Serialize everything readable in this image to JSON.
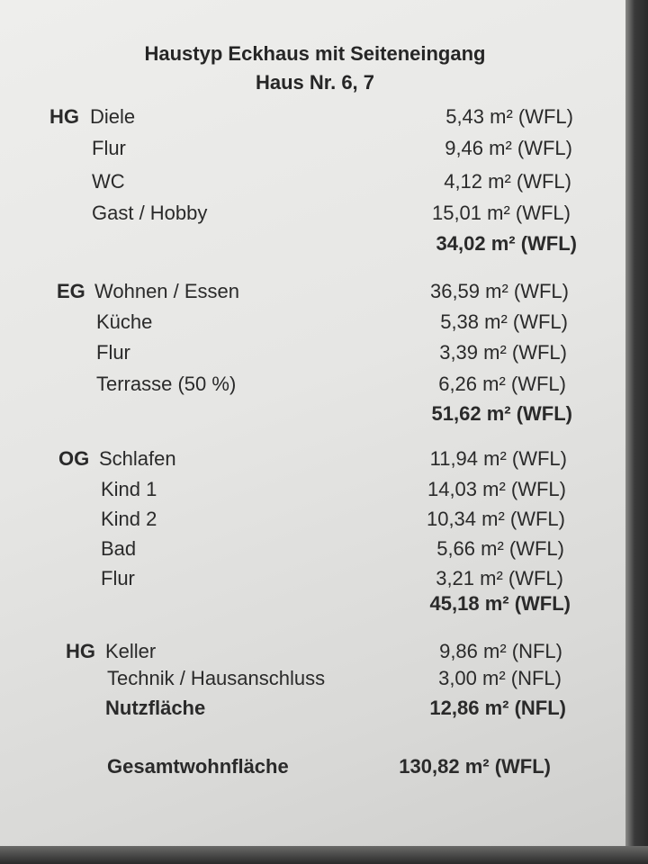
{
  "title": "Haustyp Eckhaus mit Seiteneingang",
  "subtitle": "Haus Nr. 6, 7",
  "sections": [
    {
      "label": "HG",
      "rows": [
        {
          "name": "Diele",
          "value": "5,43 m² (WFL)"
        },
        {
          "name": "Flur",
          "value": "9,46 m² (WFL)"
        },
        {
          "name": "WC",
          "value": "4,12 m² (WFL)"
        },
        {
          "name": "Gast / Hobby",
          "value": "15,01 m² (WFL)"
        }
      ],
      "total": "34,02 m² (WFL)"
    },
    {
      "label": "EG",
      "rows": [
        {
          "name": "Wohnen / Essen",
          "value": "36,59 m² (WFL)"
        },
        {
          "name": "Küche",
          "value": "5,38 m² (WFL)"
        },
        {
          "name": "Flur",
          "value": "3,39 m² (WFL)"
        },
        {
          "name": "Terrasse (50 %)",
          "value": "6,26 m² (WFL)"
        }
      ],
      "total": "51,62 m² (WFL)"
    },
    {
      "label": "OG",
      "rows": [
        {
          "name": "Schlafen",
          "value": "11,94 m² (WFL)"
        },
        {
          "name": "Kind 1",
          "value": "14,03 m² (WFL)"
        },
        {
          "name": "Kind 2",
          "value": "10,34 m² (WFL)"
        },
        {
          "name": "Bad",
          "value": "5,66 m² (WFL)"
        },
        {
          "name": "Flur",
          "value": "3,21 m² (WFL)"
        }
      ],
      "total": "45,18 m² (WFL)"
    },
    {
      "label": "HG",
      "rows": [
        {
          "name": "Keller",
          "value": "9,86 m² (NFL)"
        },
        {
          "name": "Technik / Hausanschluss",
          "value": "3,00 m² (NFL)"
        }
      ],
      "total_label": "Nutzfläche",
      "total": "12,86 m² (NFL)"
    }
  ],
  "grand_total": {
    "label": "Gesamtwohnfläche",
    "value": "130,82 m² (WFL)"
  }
}
